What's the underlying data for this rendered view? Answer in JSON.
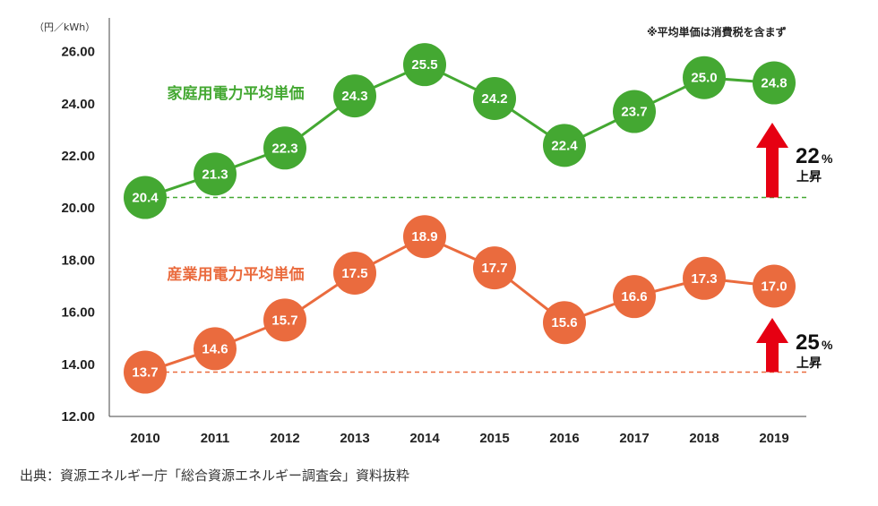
{
  "chart_data": {
    "type": "line",
    "unit_label": "（円／kWh）",
    "note": "※平均単価は消費税を含まず",
    "categories": [
      "2010",
      "2011",
      "2012",
      "2013",
      "2014",
      "2015",
      "2016",
      "2017",
      "2018",
      "2019"
    ],
    "ylim": [
      12,
      27
    ],
    "yticks": [
      "26.00",
      "24.00",
      "22.00",
      "20.00",
      "18.00",
      "16.00",
      "14.00",
      "12.00"
    ],
    "ytick_values": [
      26,
      24,
      22,
      20,
      18,
      16,
      14,
      12
    ],
    "grid": false,
    "series": [
      {
        "name": "家庭用電力平均単価",
        "color": "#44a832",
        "values": [
          20.4,
          21.3,
          22.3,
          24.3,
          25.5,
          24.2,
          22.4,
          23.7,
          25.0,
          24.8
        ],
        "labels": [
          "20.4",
          "21.3",
          "22.3",
          "24.3",
          "25.5",
          "24.2",
          "22.4",
          "23.7",
          "25.0",
          "24.8"
        ],
        "baseline": 20.4,
        "change_pct": "22",
        "change_sign": "%",
        "change_text": "上昇"
      },
      {
        "name": "産業用電力平均単価",
        "color": "#ea6b3e",
        "values": [
          13.7,
          14.6,
          15.7,
          17.5,
          18.9,
          17.7,
          15.6,
          16.6,
          17.3,
          17.0
        ],
        "labels": [
          "13.7",
          "14.6",
          "15.7",
          "17.5",
          "18.9",
          "17.7",
          "15.6",
          "16.6",
          "17.3",
          "17.0"
        ],
        "baseline": 13.7,
        "change_pct": "25",
        "change_sign": "%",
        "change_text": "上昇"
      }
    ],
    "arrow_color": "#e60012"
  },
  "source": "出典：資源エネルギー庁「総合資源エネルギー調査会」資料抜粋"
}
